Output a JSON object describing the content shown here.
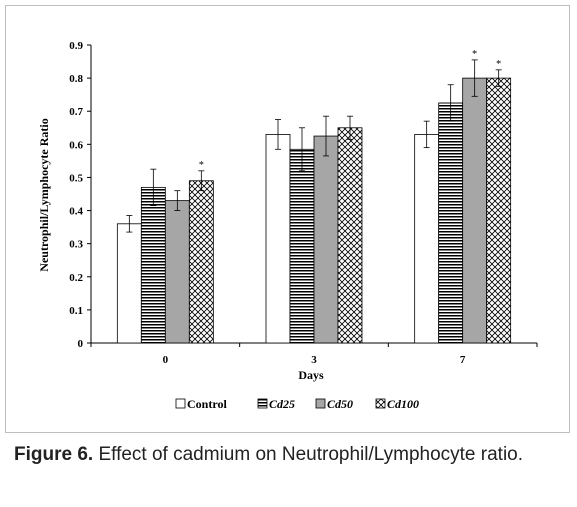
{
  "chart_data": {
    "type": "bar",
    "title": "",
    "xlabel": "Days",
    "ylabel": "Neutrophil/Lymphocyte Ratio",
    "ylim": [
      0,
      0.9
    ],
    "yticks": [
      "0",
      "0.1",
      "0.2",
      "0.3",
      "0.4",
      "0.5",
      "0.6",
      "0.7",
      "0.8",
      "0.9"
    ],
    "categories": [
      "0",
      "3",
      "7"
    ],
    "grid": false,
    "legend_position": "bottom",
    "series": [
      {
        "name": "Control",
        "pattern": "white",
        "values": [
          0.36,
          0.63,
          0.63
        ],
        "errors": [
          0.025,
          0.045,
          0.04
        ],
        "significance": [
          "",
          "",
          ""
        ]
      },
      {
        "name": "Cd25",
        "pattern": "horizontal-stripes",
        "values": [
          0.47,
          0.585,
          0.725
        ],
        "errors": [
          0.055,
          0.065,
          0.055
        ],
        "significance": [
          "",
          "",
          ""
        ]
      },
      {
        "name": "Cd50",
        "pattern": "gray",
        "values": [
          0.43,
          0.625,
          0.8
        ],
        "errors": [
          0.03,
          0.06,
          0.055
        ],
        "significance": [
          "",
          "",
          "*"
        ]
      },
      {
        "name": "Cd100",
        "pattern": "diagonal-crosshatch",
        "values": [
          0.49,
          0.65,
          0.8
        ],
        "errors": [
          0.03,
          0.035,
          0.025
        ],
        "significance": [
          "*",
          "",
          "*"
        ]
      }
    ]
  },
  "caption": {
    "label": "Figure 6.",
    "text": " Effect of cadmium on Neutrophil/Lymphocyte ratio."
  }
}
